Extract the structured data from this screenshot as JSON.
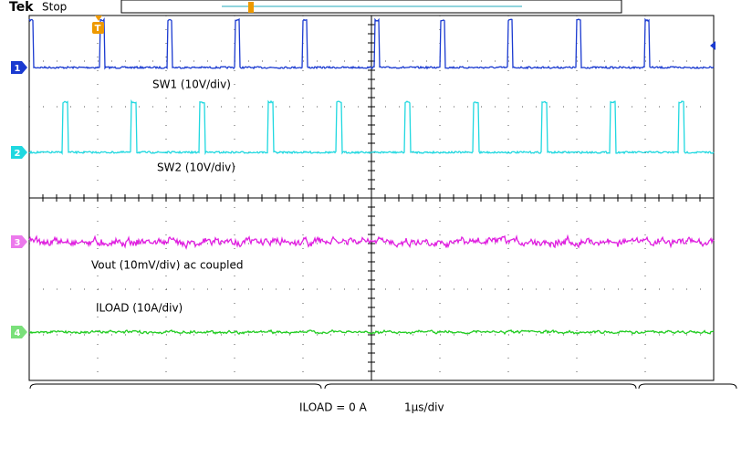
{
  "header": {
    "brand": "Tek",
    "status": "Stop",
    "trigger": "T"
  },
  "channels": [
    {
      "marker": "1",
      "label": "SW1 (10V/div)"
    },
    {
      "marker": "2",
      "label": "SW2 (10V/div)"
    },
    {
      "marker": "3",
      "label": "Vout (10mV/div) ac coupled"
    },
    {
      "marker": "4",
      "label": "ILOAD (10A/div)"
    }
  ],
  "footer": {
    "load": "ILOAD = 0 A",
    "timebase": "1µs/div"
  }
}
